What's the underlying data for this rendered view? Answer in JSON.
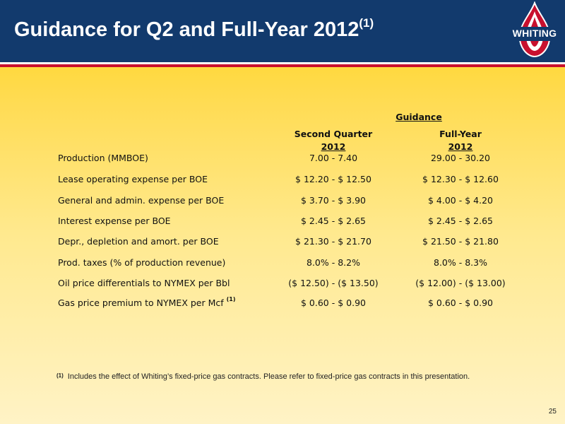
{
  "header": {
    "title": "Guidance for Q2 and Full-Year 2012",
    "title_sup": "(1)",
    "logo_text": "WHITING"
  },
  "table": {
    "group_header": "Guidance",
    "columns": [
      {
        "title": "Second Quarter",
        "year": "2012"
      },
      {
        "title": "Full-Year",
        "year": "2012"
      }
    ],
    "rows": [
      {
        "label": "Production (MMBOE)",
        "sup": "",
        "q2": "7.00 - 7.40",
        "fy": "29.00 - 30.20"
      },
      {
        "label": "Lease operating expense per BOE",
        "sup": "",
        "q2": "$ 12.20 - $ 12.50",
        "fy": "$ 12.30 - $ 12.60"
      },
      {
        "label": "General and admin. expense per BOE",
        "sup": "",
        "q2": "$ 3.70 - $ 3.90",
        "fy": "$ 4.00 - $ 4.20"
      },
      {
        "label": "Interest expense per BOE",
        "sup": "",
        "q2": "$ 2.45 - $ 2.65",
        "fy": "$ 2.45 - $ 2.65"
      },
      {
        "label": "Depr., depletion and amort. per BOE",
        "sup": "",
        "q2": "$ 21.30 - $ 21.70",
        "fy": "$ 21.50 - $ 21.80"
      },
      {
        "label": "Prod. taxes (% of production revenue)",
        "sup": "",
        "q2": "8.0% - 8.2%",
        "fy": "8.0% - 8.3%"
      },
      {
        "label": "Oil price differentials to NYMEX per Bbl",
        "sup": "",
        "q2": "($ 12.50) - ($ 13.50)",
        "fy": "($ 12.00) - ($ 13.00)"
      },
      {
        "label": "Gas price premium to NYMEX per Mcf",
        "sup": "(1)",
        "q2": "$ 0.60 - $ 0.90",
        "fy": "$ 0.60 - $ 0.90"
      }
    ]
  },
  "footnote": {
    "mark": "(1)",
    "text": "Includes the effect of Whiting’s fixed-price gas contracts.  Please refer to fixed-price gas contracts in this presentation."
  },
  "page_number": "25",
  "colors": {
    "header_bg": "#123a6d",
    "accent_red": "#c8102e",
    "background_top": "#ffd31a",
    "background_bottom": "#fff3c6"
  }
}
